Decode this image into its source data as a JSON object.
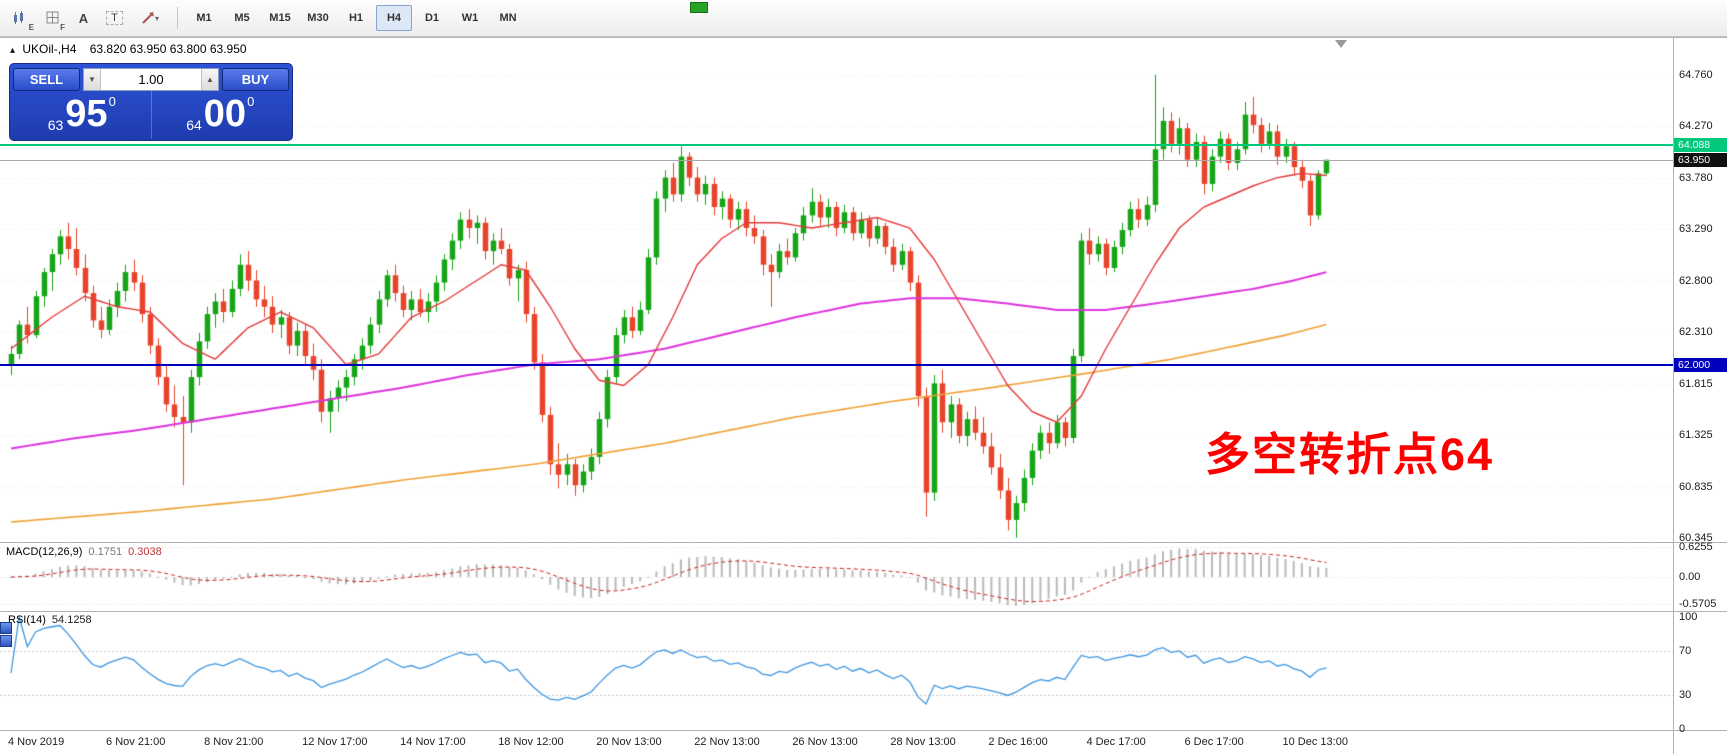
{
  "toolbar": {
    "tools": [
      {
        "id": "chart-shortcut-e",
        "letter": "E"
      },
      {
        "id": "grid-shortcut-f",
        "letter": "F"
      },
      {
        "id": "text-label-tool",
        "letter": "A"
      },
      {
        "id": "text-tool",
        "letter": "T"
      },
      {
        "id": "shapes-dropdown",
        "caret": "▾"
      }
    ],
    "timeframes": [
      {
        "label": "M1",
        "active": false
      },
      {
        "label": "M5",
        "active": false
      },
      {
        "label": "M15",
        "active": false
      },
      {
        "label": "M30",
        "active": false
      },
      {
        "label": "H1",
        "active": false
      },
      {
        "label": "H4",
        "active": true
      },
      {
        "label": "D1",
        "active": false
      },
      {
        "label": "W1",
        "active": false
      },
      {
        "label": "MN",
        "active": false
      }
    ]
  },
  "chart": {
    "collapse_icon": "▴",
    "symbol_header": "UKOil-,H4",
    "ohlc_text": "63.820 63.950 63.800 63.950",
    "annotation": "多空转折点64",
    "annotation_color": "#ff0000",
    "trade_panel": {
      "sell_label": "SELL",
      "buy_label": "BUY",
      "volume": "1.00",
      "down_icon": "▼",
      "up_icon": "▲",
      "sell_price": {
        "small": "63",
        "big": "95",
        "sup": "0"
      },
      "buy_price": {
        "small": "64",
        "big": "00",
        "sup": "0"
      }
    },
    "lines": {
      "resistance": {
        "price": 64.088,
        "label": "64.088",
        "color": "#00c97c"
      },
      "bid": {
        "price": 63.95,
        "label": "63.950",
        "color": "#111111"
      },
      "support": {
        "price": 62.0,
        "label": "62.000",
        "color": "#0000bd"
      }
    },
    "price_axis": [
      "64.760",
      "64.270",
      "63.780",
      "63.290",
      "62.800",
      "62.310",
      "61.815",
      "61.325",
      "60.835",
      "60.345"
    ],
    "time_axis": [
      "4 Nov 2019",
      "6 Nov 21:00",
      "8 Nov 21:00",
      "12 Nov 17:00",
      "14 Nov 17:00",
      "18 Nov 12:00",
      "20 Nov 13:00",
      "22 Nov 13:00",
      "26 Nov 13:00",
      "28 Nov 13:00",
      "2 Dec 16:00",
      "4 Dec 17:00",
      "6 Dec 17:00",
      "10 Dec 13:00"
    ]
  },
  "indicators": {
    "macd": {
      "label": "MACD(12,26,9)",
      "value1": "0.1751",
      "value2": "0.3038",
      "axis": [
        "0.6255",
        "0.00",
        "-0.5705"
      ]
    },
    "rsi": {
      "label": "RSI(14)",
      "value": "54.1258",
      "axis": [
        "100",
        "70",
        "30",
        "0"
      ]
    }
  },
  "chart_data": {
    "type": "candlestick",
    "symbol": "UKOil-",
    "timeframe": "H4",
    "price_range": [
      60.31,
      65.1
    ],
    "colors": {
      "up": "#16a516",
      "down": "#e8432b",
      "ma_fast": "#e43a3a",
      "ma_mid": "#dd33dd",
      "ma_slow": "#efa133",
      "macd_hist": "#b9b9b9",
      "macd_signal": "#cc2222",
      "rsi_line": "#3f96e0"
    },
    "candles": [
      [
        62.0,
        62.18,
        61.9,
        62.1
      ],
      [
        62.1,
        62.42,
        62.05,
        62.38
      ],
      [
        62.38,
        62.55,
        62.2,
        62.28
      ],
      [
        62.28,
        62.7,
        62.25,
        62.65
      ],
      [
        62.65,
        62.92,
        62.55,
        62.88
      ],
      [
        62.88,
        63.1,
        62.7,
        63.05
      ],
      [
        63.05,
        63.28,
        62.95,
        63.22
      ],
      [
        63.22,
        63.35,
        63.0,
        63.1
      ],
      [
        63.1,
        63.3,
        62.85,
        62.92
      ],
      [
        62.92,
        63.05,
        62.6,
        62.68
      ],
      [
        62.68,
        62.75,
        62.35,
        62.42
      ],
      [
        62.42,
        62.55,
        62.25,
        62.33
      ],
      [
        62.33,
        62.62,
        62.28,
        62.55
      ],
      [
        62.55,
        62.78,
        62.45,
        62.7
      ],
      [
        62.7,
        62.95,
        62.6,
        62.88
      ],
      [
        62.88,
        63.0,
        62.7,
        62.78
      ],
      [
        62.78,
        62.85,
        62.4,
        62.48
      ],
      [
        62.48,
        62.55,
        62.1,
        62.18
      ],
      [
        62.18,
        62.25,
        61.8,
        61.88
      ],
      [
        61.88,
        62.0,
        61.55,
        61.62
      ],
      [
        61.62,
        61.8,
        61.4,
        61.5
      ],
      [
        61.5,
        61.7,
        60.85,
        61.45
      ],
      [
        61.45,
        61.95,
        61.35,
        61.88
      ],
      [
        61.88,
        62.3,
        61.8,
        62.22
      ],
      [
        62.22,
        62.55,
        62.15,
        62.48
      ],
      [
        62.48,
        62.68,
        62.35,
        62.6
      ],
      [
        62.6,
        62.72,
        62.4,
        62.5
      ],
      [
        62.5,
        62.8,
        62.45,
        62.72
      ],
      [
        62.72,
        63.05,
        62.65,
        62.95
      ],
      [
        62.95,
        63.08,
        62.7,
        62.8
      ],
      [
        62.8,
        62.9,
        62.55,
        62.62
      ],
      [
        62.62,
        62.75,
        62.45,
        62.55
      ],
      [
        62.55,
        62.65,
        62.3,
        62.38
      ],
      [
        62.38,
        62.52,
        62.25,
        62.45
      ],
      [
        62.45,
        62.5,
        62.1,
        62.18
      ],
      [
        62.18,
        62.4,
        62.08,
        62.32
      ],
      [
        62.32,
        62.38,
        62.0,
        62.08
      ],
      [
        62.08,
        62.2,
        61.85,
        61.95
      ],
      [
        61.95,
        62.05,
        61.45,
        61.55
      ],
      [
        61.55,
        61.75,
        61.35,
        61.68
      ],
      [
        61.68,
        61.85,
        61.55,
        61.78
      ],
      [
        61.78,
        61.95,
        61.65,
        61.88
      ],
      [
        61.88,
        62.1,
        61.8,
        62.05
      ],
      [
        62.05,
        62.25,
        61.95,
        62.18
      ],
      [
        62.18,
        62.45,
        62.1,
        62.38
      ],
      [
        62.38,
        62.7,
        62.3,
        62.62
      ],
      [
        62.62,
        62.9,
        62.55,
        62.85
      ],
      [
        62.85,
        62.95,
        62.6,
        62.68
      ],
      [
        62.68,
        62.75,
        62.45,
        62.52
      ],
      [
        62.52,
        62.7,
        62.42,
        62.62
      ],
      [
        62.62,
        62.72,
        62.45,
        62.5
      ],
      [
        62.5,
        62.68,
        62.4,
        62.6
      ],
      [
        62.6,
        62.85,
        62.5,
        62.78
      ],
      [
        62.78,
        63.05,
        62.7,
        63.0
      ],
      [
        63.0,
        63.25,
        62.9,
        63.18
      ],
      [
        63.18,
        63.45,
        63.1,
        63.38
      ],
      [
        63.38,
        63.48,
        63.2,
        63.3
      ],
      [
        63.3,
        63.42,
        63.15,
        63.35
      ],
      [
        63.35,
        63.4,
        63.0,
        63.08
      ],
      [
        63.08,
        63.25,
        62.95,
        63.18
      ],
      [
        63.18,
        63.3,
        63.05,
        63.1
      ],
      [
        63.1,
        63.15,
        62.75,
        62.82
      ],
      [
        62.82,
        62.95,
        62.6,
        62.9
      ],
      [
        62.9,
        62.98,
        62.4,
        62.48
      ],
      [
        62.48,
        62.55,
        61.95,
        62.02
      ],
      [
        62.02,
        62.1,
        61.45,
        61.52
      ],
      [
        61.52,
        61.6,
        60.95,
        61.05
      ],
      [
        61.05,
        61.25,
        60.82,
        60.95
      ],
      [
        60.95,
        61.15,
        60.85,
        61.05
      ],
      [
        61.05,
        61.1,
        60.75,
        60.85
      ],
      [
        60.85,
        61.05,
        60.78,
        60.98
      ],
      [
        60.98,
        61.2,
        60.9,
        61.12
      ],
      [
        61.12,
        61.55,
        61.05,
        61.48
      ],
      [
        61.48,
        61.95,
        61.4,
        61.88
      ],
      [
        61.88,
        62.35,
        61.82,
        62.28
      ],
      [
        62.28,
        62.52,
        62.2,
        62.45
      ],
      [
        62.45,
        62.55,
        62.25,
        62.32
      ],
      [
        62.32,
        62.6,
        62.28,
        62.52
      ],
      [
        62.52,
        63.1,
        62.48,
        63.02
      ],
      [
        63.02,
        63.65,
        62.95,
        63.58
      ],
      [
        63.58,
        63.85,
        63.45,
        63.78
      ],
      [
        63.78,
        63.92,
        63.55,
        63.62
      ],
      [
        63.62,
        64.08,
        63.55,
        63.98
      ],
      [
        63.98,
        64.02,
        63.7,
        63.78
      ],
      [
        63.78,
        63.88,
        63.55,
        63.62
      ],
      [
        63.62,
        63.8,
        63.52,
        63.72
      ],
      [
        63.72,
        63.78,
        63.42,
        63.5
      ],
      [
        63.5,
        63.65,
        63.38,
        63.58
      ],
      [
        63.58,
        63.62,
        63.3,
        63.38
      ],
      [
        63.38,
        63.55,
        63.28,
        63.48
      ],
      [
        63.48,
        63.55,
        63.22,
        63.3
      ],
      [
        63.3,
        63.42,
        63.15,
        63.22
      ],
      [
        63.22,
        63.28,
        62.85,
        62.95
      ],
      [
        62.95,
        63.05,
        62.55,
        62.88
      ],
      [
        62.88,
        63.15,
        62.82,
        63.08
      ],
      [
        63.08,
        63.2,
        62.95,
        63.02
      ],
      [
        63.02,
        63.3,
        62.98,
        63.25
      ],
      [
        63.25,
        63.5,
        63.18,
        63.42
      ],
      [
        63.42,
        63.68,
        63.35,
        63.55
      ],
      [
        63.55,
        63.62,
        63.32,
        63.4
      ],
      [
        63.4,
        63.58,
        63.3,
        63.5
      ],
      [
        63.5,
        63.55,
        63.22,
        63.3
      ],
      [
        63.3,
        63.52,
        63.25,
        63.45
      ],
      [
        63.45,
        63.5,
        63.18,
        63.25
      ],
      [
        63.25,
        63.45,
        63.2,
        63.38
      ],
      [
        63.38,
        63.42,
        63.12,
        63.2
      ],
      [
        63.2,
        63.4,
        63.15,
        63.32
      ],
      [
        63.32,
        63.35,
        63.05,
        63.12
      ],
      [
        63.12,
        63.2,
        62.88,
        62.95
      ],
      [
        62.95,
        63.15,
        62.9,
        63.08
      ],
      [
        63.08,
        63.12,
        62.7,
        62.78
      ],
      [
        62.78,
        62.85,
        61.6,
        61.7
      ],
      [
        61.7,
        61.78,
        60.55,
        60.78
      ],
      [
        60.78,
        61.9,
        60.7,
        61.82
      ],
      [
        61.82,
        61.95,
        61.35,
        61.45
      ],
      [
        61.45,
        61.7,
        61.3,
        61.62
      ],
      [
        61.62,
        61.68,
        61.25,
        61.32
      ],
      [
        61.32,
        61.55,
        61.22,
        61.48
      ],
      [
        61.48,
        61.6,
        61.28,
        61.35
      ],
      [
        61.35,
        61.5,
        61.15,
        61.22
      ],
      [
        61.22,
        61.35,
        60.95,
        61.02
      ],
      [
        61.02,
        61.15,
        60.72,
        60.8
      ],
      [
        60.8,
        60.92,
        60.42,
        60.52
      ],
      [
        60.52,
        60.75,
        60.35,
        60.68
      ],
      [
        60.68,
        61.0,
        60.6,
        60.92
      ],
      [
        60.92,
        61.25,
        60.85,
        61.18
      ],
      [
        61.18,
        61.42,
        61.1,
        61.35
      ],
      [
        61.35,
        61.45,
        61.15,
        61.25
      ],
      [
        61.25,
        61.52,
        61.2,
        61.45
      ],
      [
        61.45,
        61.5,
        61.22,
        61.3
      ],
      [
        61.3,
        62.15,
        61.25,
        62.08
      ],
      [
        62.08,
        63.25,
        62.02,
        63.18
      ],
      [
        63.18,
        63.3,
        62.95,
        63.05
      ],
      [
        63.05,
        63.22,
        62.98,
        63.15
      ],
      [
        63.15,
        63.2,
        62.85,
        62.92
      ],
      [
        62.92,
        63.18,
        62.88,
        63.12
      ],
      [
        63.12,
        63.35,
        63.05,
        63.28
      ],
      [
        63.28,
        63.55,
        63.22,
        63.48
      ],
      [
        63.48,
        63.58,
        63.3,
        63.38
      ],
      [
        63.38,
        63.6,
        63.32,
        63.52
      ],
      [
        63.52,
        64.76,
        63.45,
        64.05
      ],
      [
        64.05,
        64.45,
        63.95,
        64.32
      ],
      [
        64.32,
        64.4,
        64.02,
        64.1
      ],
      [
        64.1,
        64.35,
        64.0,
        64.25
      ],
      [
        64.25,
        64.3,
        63.88,
        63.95
      ],
      [
        63.95,
        64.2,
        63.88,
        64.12
      ],
      [
        64.12,
        64.18,
        63.62,
        63.72
      ],
      [
        63.72,
        64.05,
        63.65,
        63.98
      ],
      [
        63.98,
        64.22,
        63.92,
        64.15
      ],
      [
        64.15,
        64.2,
        63.85,
        63.92
      ],
      [
        63.92,
        64.12,
        63.85,
        64.05
      ],
      [
        64.05,
        64.5,
        64.0,
        64.38
      ],
      [
        64.38,
        64.55,
        64.2,
        64.28
      ],
      [
        64.28,
        64.35,
        64.02,
        64.1
      ],
      [
        64.1,
        64.3,
        64.05,
        64.22
      ],
      [
        64.22,
        64.28,
        63.9,
        63.98
      ],
      [
        63.98,
        64.15,
        63.92,
        64.08
      ],
      [
        64.08,
        64.12,
        63.8,
        63.88
      ],
      [
        63.88,
        63.95,
        63.68,
        63.75
      ],
      [
        63.75,
        63.82,
        63.32,
        63.42
      ],
      [
        63.42,
        63.85,
        63.38,
        63.82
      ],
      [
        63.82,
        63.95,
        63.8,
        63.95
      ]
    ],
    "ma_fast_anchors": [
      [
        0,
        62.15
      ],
      [
        5,
        62.45
      ],
      [
        9,
        62.65
      ],
      [
        13,
        62.55
      ],
      [
        17,
        62.5
      ],
      [
        21,
        62.2
      ],
      [
        25,
        62.05
      ],
      [
        29,
        62.35
      ],
      [
        33,
        62.5
      ],
      [
        37,
        62.35
      ],
      [
        41,
        62.0
      ],
      [
        45,
        62.1
      ],
      [
        49,
        62.45
      ],
      [
        53,
        62.6
      ],
      [
        57,
        62.8
      ],
      [
        60,
        62.95
      ],
      [
        63,
        62.9
      ],
      [
        66,
        62.55
      ],
      [
        69,
        62.15
      ],
      [
        72,
        61.85
      ],
      [
        75,
        61.8
      ],
      [
        78,
        62.0
      ],
      [
        81,
        62.45
      ],
      [
        84,
        62.95
      ],
      [
        87,
        63.2
      ],
      [
        90,
        63.35
      ],
      [
        94,
        63.35
      ],
      [
        98,
        63.3
      ],
      [
        102,
        63.35
      ],
      [
        106,
        63.4
      ],
      [
        110,
        63.3
      ],
      [
        113,
        63.0
      ],
      [
        116,
        62.6
      ],
      [
        119,
        62.2
      ],
      [
        122,
        61.8
      ],
      [
        125,
        61.55
      ],
      [
        128,
        61.45
      ],
      [
        131,
        61.7
      ],
      [
        134,
        62.15
      ],
      [
        137,
        62.55
      ],
      [
        140,
        62.95
      ],
      [
        143,
        63.3
      ],
      [
        146,
        63.5
      ],
      [
        149,
        63.6
      ],
      [
        152,
        63.7
      ],
      [
        155,
        63.78
      ],
      [
        158,
        63.82
      ],
      [
        161,
        63.8
      ]
    ],
    "ma_mid_anchors": [
      [
        0,
        61.2
      ],
      [
        8,
        61.3
      ],
      [
        16,
        61.38
      ],
      [
        24,
        61.48
      ],
      [
        32,
        61.58
      ],
      [
        40,
        61.68
      ],
      [
        48,
        61.78
      ],
      [
        56,
        61.9
      ],
      [
        64,
        62.0
      ],
      [
        72,
        62.05
      ],
      [
        80,
        62.15
      ],
      [
        88,
        62.3
      ],
      [
        96,
        62.45
      ],
      [
        104,
        62.58
      ],
      [
        110,
        62.63
      ],
      [
        116,
        62.63
      ],
      [
        122,
        62.58
      ],
      [
        128,
        62.52
      ],
      [
        134,
        62.52
      ],
      [
        140,
        62.58
      ],
      [
        146,
        62.65
      ],
      [
        152,
        62.72
      ],
      [
        157,
        62.8
      ],
      [
        161,
        62.88
      ]
    ],
    "ma_slow_anchors": [
      [
        0,
        60.5
      ],
      [
        16,
        60.6
      ],
      [
        32,
        60.72
      ],
      [
        48,
        60.9
      ],
      [
        64,
        61.05
      ],
      [
        80,
        61.25
      ],
      [
        96,
        61.5
      ],
      [
        108,
        61.65
      ],
      [
        120,
        61.78
      ],
      [
        132,
        61.92
      ],
      [
        142,
        62.05
      ],
      [
        150,
        62.18
      ],
      [
        156,
        62.28
      ],
      [
        161,
        62.38
      ]
    ],
    "macd_params": [
      12,
      26,
      9
    ],
    "rsi_params": [
      14
    ]
  }
}
